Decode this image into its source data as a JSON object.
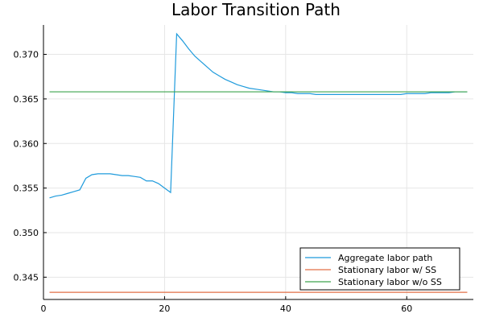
{
  "chart_data": {
    "type": "line",
    "title": "Labor Transition Path",
    "xlabel": "",
    "ylabel": "",
    "xlim": [
      0,
      71
    ],
    "ylim": [
      0.3425,
      0.3733
    ],
    "xticks": [
      0,
      20,
      40,
      60
    ],
    "yticks": [
      0.345,
      0.35,
      0.355,
      0.36,
      0.365,
      0.37
    ],
    "xtick_labels": [
      "0",
      "20",
      "40",
      "60"
    ],
    "ytick_labels": [
      "0.345",
      "0.350",
      "0.355",
      "0.360",
      "0.365",
      "0.370"
    ],
    "grid": true,
    "legend_position": "bottom-right",
    "series": [
      {
        "name": "Aggregate labor path",
        "color": "#1f9bdc",
        "x": [
          1,
          2,
          3,
          4,
          5,
          6,
          7,
          8,
          9,
          10,
          11,
          12,
          13,
          14,
          15,
          16,
          17,
          18,
          19,
          20,
          21,
          22,
          23,
          24,
          25,
          26,
          27,
          28,
          29,
          30,
          31,
          32,
          33,
          34,
          35,
          36,
          37,
          38,
          39,
          40,
          41,
          42,
          43,
          44,
          45,
          46,
          47,
          48,
          49,
          50,
          51,
          52,
          53,
          54,
          55,
          56,
          57,
          58,
          59,
          60,
          61,
          62,
          63,
          64,
          65,
          66,
          67,
          68,
          69,
          70
        ],
        "y": [
          0.3539,
          0.3541,
          0.3542,
          0.3544,
          0.3546,
          0.3548,
          0.3561,
          0.3565,
          0.3566,
          0.3566,
          0.3566,
          0.3565,
          0.3564,
          0.3564,
          0.3563,
          0.3562,
          0.3558,
          0.3558,
          0.3555,
          0.355,
          0.3545,
          0.3723,
          0.3715,
          0.3706,
          0.3698,
          0.3692,
          0.3686,
          0.368,
          0.3676,
          0.3672,
          0.3669,
          0.3666,
          0.3664,
          0.3662,
          0.3661,
          0.366,
          0.3659,
          0.3658,
          0.3658,
          0.3657,
          0.3657,
          0.3656,
          0.3656,
          0.3656,
          0.3655,
          0.3655,
          0.3655,
          0.3655,
          0.3655,
          0.3655,
          0.3655,
          0.3655,
          0.3655,
          0.3655,
          0.3655,
          0.3655,
          0.3655,
          0.3655,
          0.3655,
          0.3656,
          0.3656,
          0.3656,
          0.3656,
          0.3657,
          0.3657,
          0.3657,
          0.3657,
          0.3658,
          0.3658,
          0.3658
        ]
      },
      {
        "name": "Stationary labor w/ SS",
        "color": "#e26f46",
        "x": [
          1,
          70
        ],
        "y": [
          0.3433,
          0.3433
        ]
      },
      {
        "name": "Stationary labor w/o SS",
        "color": "#3da44d",
        "x": [
          1,
          70
        ],
        "y": [
          0.3658,
          0.3658
        ]
      }
    ]
  }
}
